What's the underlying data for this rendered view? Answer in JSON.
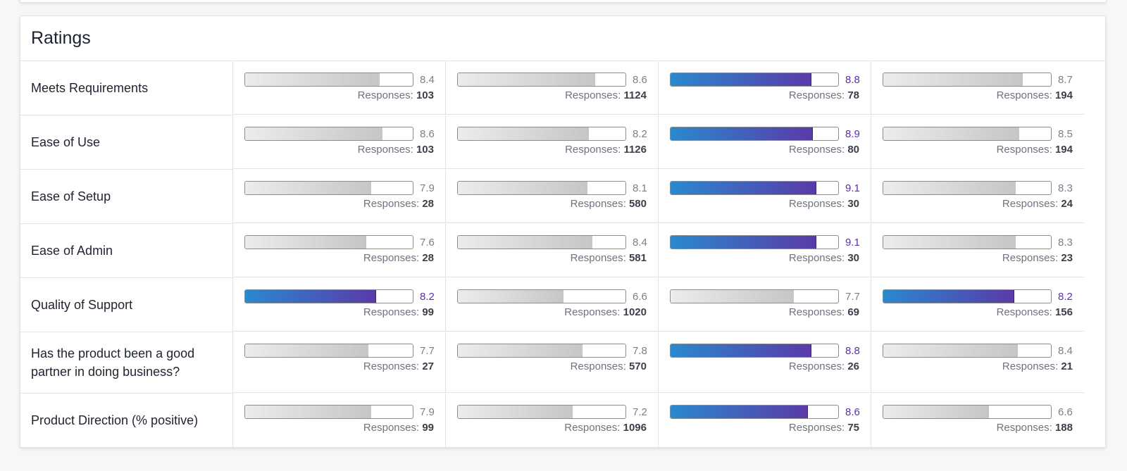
{
  "card": {
    "title": "Ratings"
  },
  "responses_label": "Responses: ",
  "colors": {
    "highlight_gradient_start": "#2a89cd",
    "highlight_gradient_end": "#5a3aa8",
    "highlight_text": "#5c2fa6",
    "neutral_bar": "#c6c6c6"
  },
  "rows": [
    {
      "label": "Meets Requirements",
      "cells": [
        {
          "score": "8.4",
          "value": 8.4,
          "responses": "103",
          "highlight": false
        },
        {
          "score": "8.6",
          "value": 8.6,
          "responses": "1124",
          "highlight": false
        },
        {
          "score": "8.8",
          "value": 8.8,
          "responses": "78",
          "highlight": true
        },
        {
          "score": "8.7",
          "value": 8.7,
          "responses": "194",
          "highlight": false
        }
      ]
    },
    {
      "label": "Ease of Use",
      "cells": [
        {
          "score": "8.6",
          "value": 8.6,
          "responses": "103",
          "highlight": false
        },
        {
          "score": "8.2",
          "value": 8.2,
          "responses": "1126",
          "highlight": false
        },
        {
          "score": "8.9",
          "value": 8.9,
          "responses": "80",
          "highlight": true
        },
        {
          "score": "8.5",
          "value": 8.5,
          "responses": "194",
          "highlight": false
        }
      ]
    },
    {
      "label": "Ease of Setup",
      "cells": [
        {
          "score": "7.9",
          "value": 7.9,
          "responses": "28",
          "highlight": false
        },
        {
          "score": "8.1",
          "value": 8.1,
          "responses": "580",
          "highlight": false
        },
        {
          "score": "9.1",
          "value": 9.1,
          "responses": "30",
          "highlight": true
        },
        {
          "score": "8.3",
          "value": 8.3,
          "responses": "24",
          "highlight": false
        }
      ]
    },
    {
      "label": "Ease of Admin",
      "cells": [
        {
          "score": "7.6",
          "value": 7.6,
          "responses": "28",
          "highlight": false
        },
        {
          "score": "8.4",
          "value": 8.4,
          "responses": "581",
          "highlight": false
        },
        {
          "score": "9.1",
          "value": 9.1,
          "responses": "30",
          "highlight": true
        },
        {
          "score": "8.3",
          "value": 8.3,
          "responses": "23",
          "highlight": false
        }
      ]
    },
    {
      "label": "Quality of Support",
      "cells": [
        {
          "score": "8.2",
          "value": 8.2,
          "responses": "99",
          "highlight": true
        },
        {
          "score": "6.6",
          "value": 6.6,
          "responses": "1020",
          "highlight": false
        },
        {
          "score": "7.7",
          "value": 7.7,
          "responses": "69",
          "highlight": false
        },
        {
          "score": "8.2",
          "value": 8.2,
          "responses": "156",
          "highlight": true
        }
      ]
    },
    {
      "label": "Has the product been a good partner in doing business?",
      "cells": [
        {
          "score": "7.7",
          "value": 7.7,
          "responses": "27",
          "highlight": false
        },
        {
          "score": "7.8",
          "value": 7.8,
          "responses": "570",
          "highlight": false
        },
        {
          "score": "8.8",
          "value": 8.8,
          "responses": "26",
          "highlight": true
        },
        {
          "score": "8.4",
          "value": 8.4,
          "responses": "21",
          "highlight": false
        }
      ]
    },
    {
      "label": "Product Direction (% positive)",
      "cells": [
        {
          "score": "7.9",
          "value": 7.9,
          "responses": "99",
          "highlight": false
        },
        {
          "score": "7.2",
          "value": 7.2,
          "responses": "1096",
          "highlight": false
        },
        {
          "score": "8.6",
          "value": 8.6,
          "responses": "75",
          "highlight": true
        },
        {
          "score": "6.6",
          "value": 6.6,
          "responses": "188",
          "highlight": false
        }
      ]
    }
  ]
}
